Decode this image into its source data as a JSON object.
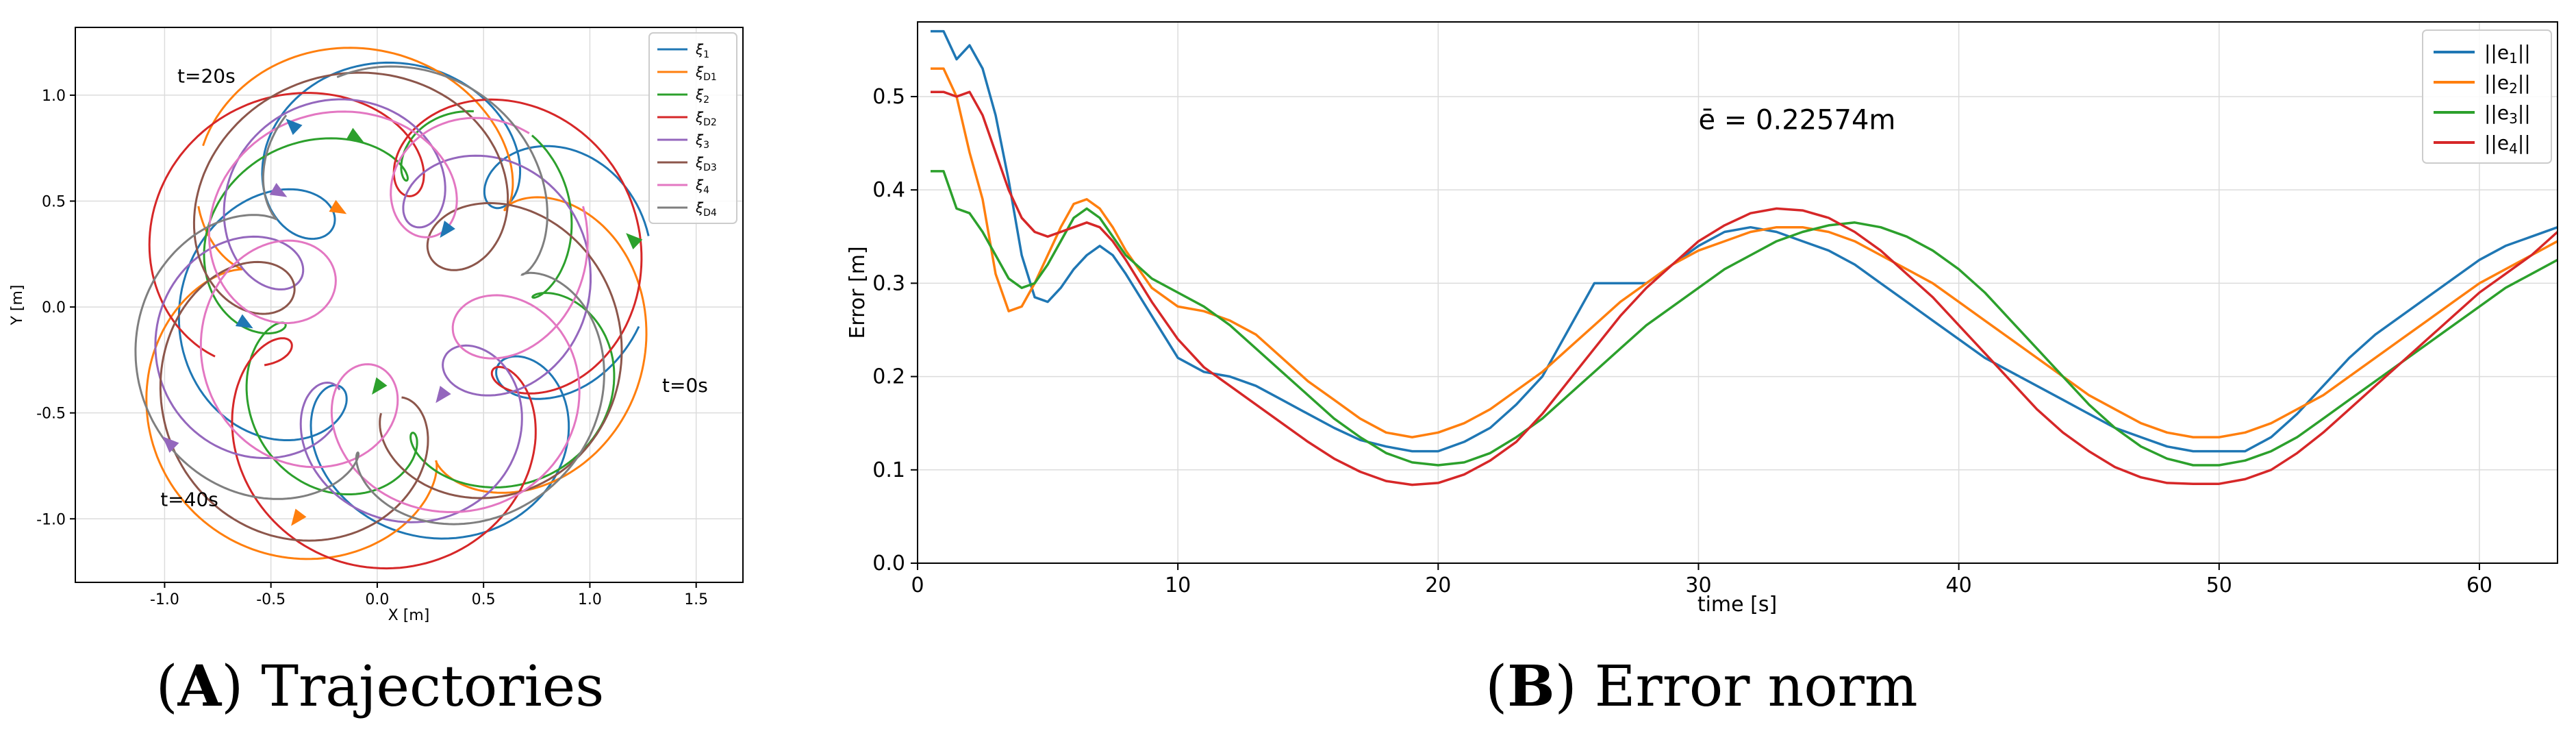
{
  "chart_data": [
    {
      "type": "line",
      "caption_letter": "A",
      "caption_text": "Trajectories",
      "xlabel": "X [m]",
      "ylabel": "Y [m]",
      "xlim": [
        -1.42,
        1.72
      ],
      "ylim": [
        -1.3,
        1.32
      ],
      "xticks": [
        "-1.0",
        "-0.5",
        "0.0",
        "0.5",
        "1.0",
        "1.5"
      ],
      "xtick_values": [
        -1.0,
        -0.5,
        0.0,
        0.5,
        1.0,
        1.5
      ],
      "yticks": [
        "-1.0",
        "-0.5",
        "0.0",
        "0.5",
        "1.0"
      ],
      "ytick_values": [
        -1.0,
        -0.5,
        0.0,
        0.5,
        1.0
      ],
      "grid": true,
      "legend_position": "top-right",
      "annotations": [
        {
          "text": "t=20s",
          "x": -0.94,
          "y": 1.06
        },
        {
          "text": "t=0s",
          "x": 1.34,
          "y": -0.4
        },
        {
          "text": "t=40s",
          "x": -1.02,
          "y": -0.94
        }
      ],
      "series": [
        {
          "name": "ξ1",
          "legend_main": "ξ",
          "legend_sub": "1",
          "color": "#1f77b4",
          "arrows": [
            [
              -0.62,
              -0.08
            ],
            [
              0.32,
              0.36
            ],
            [
              -0.4,
              0.86
            ]
          ]
        },
        {
          "name": "ξD1",
          "legend_main": "ξ",
          "legend_sub": "D1",
          "color": "#ff7f0e",
          "arrows": [
            [
              -0.18,
              0.46
            ],
            [
              -0.38,
              -1.0
            ]
          ]
        },
        {
          "name": "ξ2",
          "legend_main": "ξ",
          "legend_sub": "2",
          "color": "#2ca02c",
          "arrows": [
            [
              -0.1,
              0.8
            ],
            [
              0.0,
              -0.38
            ],
            [
              1.2,
              0.32
            ]
          ]
        },
        {
          "name": "ξD2",
          "legend_main": "ξ",
          "legend_sub": "D2",
          "color": "#d62728",
          "arrows": []
        },
        {
          "name": "ξ3",
          "legend_main": "ξ",
          "legend_sub": "3",
          "color": "#9467bd",
          "arrows": [
            [
              -0.46,
              0.54
            ],
            [
              0.3,
              -0.42
            ],
            [
              -0.98,
              -0.64
            ]
          ]
        },
        {
          "name": "ξD3",
          "legend_main": "ξ",
          "legend_sub": "D3",
          "color": "#8c564b",
          "arrows": []
        },
        {
          "name": "ξ4",
          "legend_main": "ξ",
          "legend_sub": "4",
          "color": "#e377c2",
          "arrows": []
        },
        {
          "name": "ξD4",
          "legend_main": "ξ",
          "legend_sub": "D4",
          "color": "#7f7f7f",
          "arrows": []
        }
      ]
    },
    {
      "type": "line",
      "caption_letter": "B",
      "caption_text": "Error norm",
      "xlabel": "time [s]",
      "ylabel": "Error [m]",
      "xlim": [
        0,
        63
      ],
      "ylim": [
        0,
        0.58
      ],
      "xticks": [
        "0",
        "10",
        "20",
        "30",
        "40",
        "50",
        "60"
      ],
      "xtick_values": [
        0,
        10,
        20,
        30,
        40,
        50,
        60
      ],
      "yticks": [
        "0.0",
        "0.1",
        "0.2",
        "0.3",
        "0.4",
        "0.5"
      ],
      "ytick_values": [
        0.0,
        0.1,
        0.2,
        0.3,
        0.4,
        0.5
      ],
      "grid": true,
      "legend_position": "top-right",
      "annotation": {
        "text": "ē = 0.22574m",
        "x": 30,
        "y": 0.465
      },
      "series": [
        {
          "name": "||e1||",
          "legend_prefix": "||e",
          "legend_sub": "1",
          "legend_suffix": "||",
          "color": "#1f77b4",
          "x": [
            0.5,
            1.0,
            1.5,
            2.0,
            2.5,
            3.0,
            3.5,
            4.0,
            4.5,
            5.0,
            5.5,
            6.0,
            6.5,
            7.0,
            7.5,
            8.0,
            9.0,
            10.0,
            11.0,
            12.0,
            13.0,
            14.0,
            15.0,
            16.0,
            17.0,
            18.0,
            19.0,
            20.0,
            21.0,
            22.0,
            23.0,
            24.0,
            25.0,
            26.0,
            27.0,
            28.0,
            29.0,
            30.0,
            31.0,
            32.0,
            33.0,
            34.0,
            35.0,
            36.0,
            37.0,
            38.0,
            39.0,
            40.0,
            41.0,
            42.0,
            43.0,
            44.0,
            45.0,
            46.0,
            47.0,
            48.0,
            49.0,
            50.0,
            51.0,
            52.0,
            53.0,
            54.0,
            55.0,
            56.0,
            57.0,
            58.0,
            59.0,
            60.0,
            61.0,
            62.0,
            63.0
          ],
          "y": [
            0.57,
            0.57,
            0.54,
            0.555,
            0.53,
            0.48,
            0.41,
            0.33,
            0.285,
            0.28,
            0.295,
            0.315,
            0.33,
            0.34,
            0.33,
            0.31,
            0.265,
            0.22,
            0.205,
            0.2,
            0.19,
            0.175,
            0.16,
            0.145,
            0.132,
            0.125,
            0.12,
            0.12,
            0.13,
            0.145,
            0.17,
            0.2,
            0.25,
            0.3,
            0.3,
            0.3,
            0.32,
            0.34,
            0.355,
            0.36,
            0.355,
            0.345,
            0.335,
            0.32,
            0.3,
            0.28,
            0.26,
            0.24,
            0.22,
            0.205,
            0.19,
            0.175,
            0.16,
            0.145,
            0.135,
            0.125,
            0.12,
            0.12,
            0.12,
            0.135,
            0.16,
            0.19,
            0.22,
            0.245,
            0.265,
            0.285,
            0.305,
            0.325,
            0.34,
            0.35,
            0.36
          ]
        },
        {
          "name": "||e2||",
          "legend_prefix": "||e",
          "legend_sub": "2",
          "legend_suffix": "||",
          "color": "#ff7f0e",
          "x": [
            0.5,
            1.0,
            1.5,
            2.0,
            2.5,
            3.0,
            3.5,
            4.0,
            4.5,
            5.0,
            5.5,
            6.0,
            6.5,
            7.0,
            7.5,
            8.0,
            9.0,
            10.0,
            11.0,
            12.0,
            13.0,
            14.0,
            15.0,
            16.0,
            17.0,
            18.0,
            19.0,
            20.0,
            21.0,
            22.0,
            23.0,
            24.0,
            25.0,
            26.0,
            27.0,
            28.0,
            29.0,
            30.0,
            31.0,
            32.0,
            33.0,
            34.0,
            35.0,
            36.0,
            37.0,
            38.0,
            39.0,
            40.0,
            41.0,
            42.0,
            43.0,
            44.0,
            45.0,
            46.0,
            47.0,
            48.0,
            49.0,
            50.0,
            51.0,
            52.0,
            53.0,
            54.0,
            55.0,
            56.0,
            57.0,
            58.0,
            59.0,
            60.0,
            61.0,
            62.0,
            63.0
          ],
          "y": [
            0.53,
            0.53,
            0.5,
            0.44,
            0.39,
            0.31,
            0.27,
            0.275,
            0.3,
            0.33,
            0.36,
            0.385,
            0.39,
            0.38,
            0.36,
            0.335,
            0.295,
            0.275,
            0.27,
            0.26,
            0.245,
            0.22,
            0.195,
            0.175,
            0.155,
            0.14,
            0.135,
            0.14,
            0.15,
            0.165,
            0.185,
            0.205,
            0.23,
            0.255,
            0.28,
            0.3,
            0.32,
            0.335,
            0.345,
            0.355,
            0.36,
            0.36,
            0.355,
            0.345,
            0.33,
            0.315,
            0.3,
            0.28,
            0.26,
            0.24,
            0.22,
            0.2,
            0.18,
            0.165,
            0.15,
            0.14,
            0.135,
            0.135,
            0.14,
            0.15,
            0.165,
            0.18,
            0.2,
            0.22,
            0.24,
            0.26,
            0.28,
            0.3,
            0.315,
            0.33,
            0.345
          ]
        },
        {
          "name": "||e3||",
          "legend_prefix": "||e",
          "legend_sub": "3",
          "legend_suffix": "||",
          "color": "#2ca02c",
          "x": [
            0.5,
            1.0,
            1.5,
            2.0,
            2.5,
            3.0,
            3.5,
            4.0,
            4.5,
            5.0,
            5.5,
            6.0,
            6.5,
            7.0,
            7.5,
            8.0,
            9.0,
            10.0,
            11.0,
            12.0,
            13.0,
            14.0,
            15.0,
            16.0,
            17.0,
            18.0,
            19.0,
            20.0,
            21.0,
            22.0,
            23.0,
            24.0,
            25.0,
            26.0,
            27.0,
            28.0,
            29.0,
            30.0,
            31.0,
            32.0,
            33.0,
            34.0,
            35.0,
            36.0,
            37.0,
            38.0,
            39.0,
            40.0,
            41.0,
            42.0,
            43.0,
            44.0,
            45.0,
            46.0,
            47.0,
            48.0,
            49.0,
            50.0,
            51.0,
            52.0,
            53.0,
            54.0,
            55.0,
            56.0,
            57.0,
            58.0,
            59.0,
            60.0,
            61.0,
            62.0,
            63.0
          ],
          "y": [
            0.42,
            0.42,
            0.38,
            0.375,
            0.355,
            0.33,
            0.305,
            0.295,
            0.3,
            0.32,
            0.345,
            0.37,
            0.38,
            0.37,
            0.35,
            0.33,
            0.305,
            0.29,
            0.275,
            0.255,
            0.23,
            0.205,
            0.18,
            0.155,
            0.135,
            0.118,
            0.108,
            0.105,
            0.108,
            0.118,
            0.135,
            0.155,
            0.18,
            0.205,
            0.23,
            0.255,
            0.275,
            0.295,
            0.315,
            0.33,
            0.345,
            0.355,
            0.362,
            0.365,
            0.36,
            0.35,
            0.335,
            0.315,
            0.29,
            0.26,
            0.23,
            0.2,
            0.17,
            0.145,
            0.125,
            0.112,
            0.105,
            0.105,
            0.11,
            0.12,
            0.135,
            0.155,
            0.175,
            0.195,
            0.215,
            0.235,
            0.255,
            0.275,
            0.295,
            0.31,
            0.325
          ]
        },
        {
          "name": "||e4||",
          "legend_prefix": "||e",
          "legend_sub": "4",
          "legend_suffix": "||",
          "color": "#d62728",
          "x": [
            0.5,
            1.0,
            1.5,
            2.0,
            2.5,
            3.0,
            3.5,
            4.0,
            4.5,
            5.0,
            5.5,
            6.0,
            6.5,
            7.0,
            7.5,
            8.0,
            9.0,
            10.0,
            11.0,
            12.0,
            13.0,
            14.0,
            15.0,
            16.0,
            17.0,
            18.0,
            19.0,
            20.0,
            21.0,
            22.0,
            23.0,
            24.0,
            25.0,
            26.0,
            27.0,
            28.0,
            29.0,
            30.0,
            31.0,
            32.0,
            33.0,
            34.0,
            35.0,
            36.0,
            37.0,
            38.0,
            39.0,
            40.0,
            41.0,
            42.0,
            43.0,
            44.0,
            45.0,
            46.0,
            47.0,
            48.0,
            49.0,
            50.0,
            51.0,
            52.0,
            53.0,
            54.0,
            55.0,
            56.0,
            57.0,
            58.0,
            59.0,
            60.0,
            61.0,
            62.0,
            63.0
          ],
          "y": [
            0.505,
            0.505,
            0.5,
            0.505,
            0.48,
            0.44,
            0.4,
            0.37,
            0.355,
            0.35,
            0.355,
            0.36,
            0.365,
            0.36,
            0.345,
            0.325,
            0.28,
            0.24,
            0.21,
            0.19,
            0.17,
            0.15,
            0.13,
            0.112,
            0.098,
            0.088,
            0.084,
            0.086,
            0.095,
            0.11,
            0.13,
            0.16,
            0.195,
            0.23,
            0.265,
            0.295,
            0.32,
            0.345,
            0.362,
            0.375,
            0.38,
            0.378,
            0.37,
            0.355,
            0.335,
            0.31,
            0.285,
            0.255,
            0.225,
            0.195,
            0.165,
            0.14,
            0.12,
            0.103,
            0.092,
            0.086,
            0.085,
            0.085,
            0.09,
            0.1,
            0.118,
            0.14,
            0.165,
            0.19,
            0.215,
            0.24,
            0.265,
            0.29,
            0.31,
            0.33,
            0.355
          ]
        }
      ]
    }
  ]
}
